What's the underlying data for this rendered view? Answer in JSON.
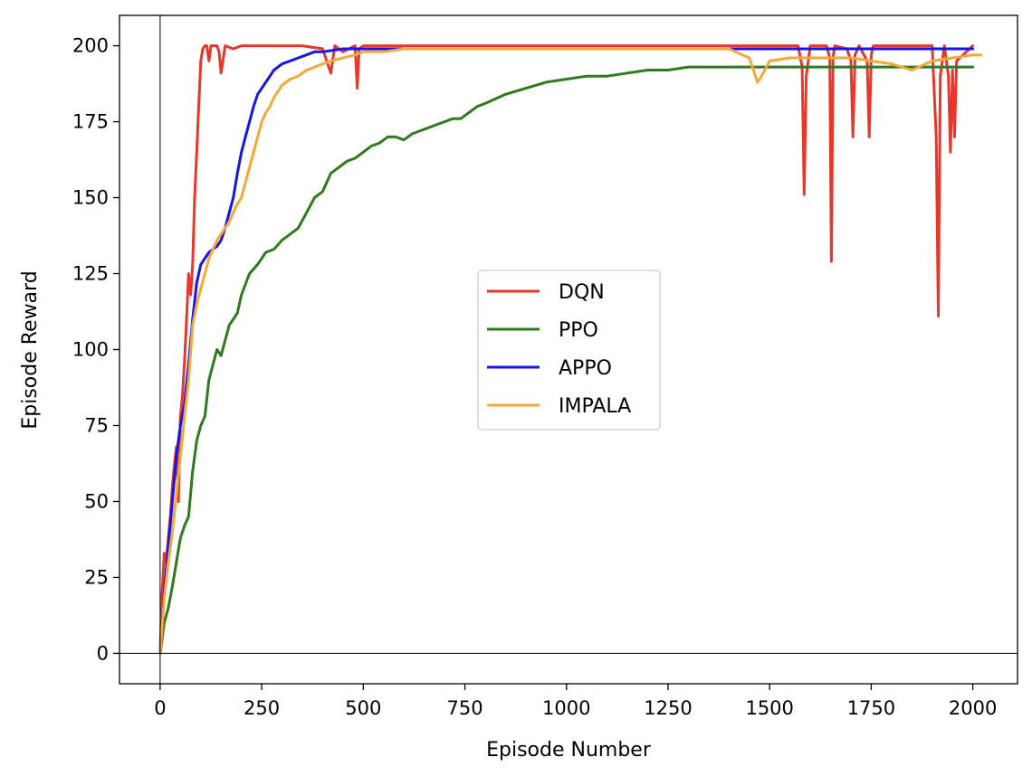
{
  "chart_data": {
    "type": "line",
    "title": "",
    "xlabel": "Episode Number",
    "ylabel": "Episode Reward",
    "xlim": [
      -100,
      2110
    ],
    "ylim": [
      -10,
      210
    ],
    "xticks": [
      "0",
      "250",
      "500",
      "750",
      "1000",
      "1250",
      "1500",
      "1750",
      "2000"
    ],
    "yticks": [
      "0",
      "25",
      "50",
      "75",
      "100",
      "125",
      "150",
      "175",
      "200"
    ],
    "grid": false,
    "legend_position": "center",
    "reference_lines": {
      "x": 0,
      "y": 0
    },
    "series": [
      {
        "name": "DQN",
        "color": "#e8372a",
        "x": [
          0,
          5,
          10,
          15,
          20,
          25,
          30,
          35,
          40,
          45,
          50,
          55,
          60,
          65,
          70,
          75,
          80,
          85,
          90,
          95,
          100,
          105,
          110,
          115,
          120,
          125,
          130,
          140,
          145,
          150,
          160,
          180,
          200,
          250,
          300,
          350,
          400,
          420,
          430,
          450,
          480,
          485,
          490,
          500,
          600,
          700,
          800,
          900,
          1000,
          1100,
          1200,
          1300,
          1400,
          1500,
          1570,
          1580,
          1585,
          1590,
          1600,
          1640,
          1648,
          1652,
          1656,
          1660,
          1690,
          1700,
          1705,
          1710,
          1720,
          1740,
          1745,
          1750,
          1755,
          1760,
          1800,
          1900,
          1910,
          1915,
          1920,
          1930,
          1940,
          1945,
          1950,
          1955,
          1960,
          2000
        ],
        "y": [
          0,
          20,
          33,
          30,
          38,
          45,
          55,
          62,
          68,
          50,
          78,
          85,
          96,
          110,
          125,
          118,
          128,
          150,
          165,
          180,
          195,
          199,
          200,
          200,
          195,
          200,
          200,
          200,
          198,
          191,
          200,
          199,
          200,
          200,
          200,
          200,
          199,
          191,
          200,
          198,
          200,
          186,
          199,
          200,
          200,
          200,
          200,
          200,
          200,
          200,
          200,
          200,
          200,
          200,
          200,
          193,
          151,
          190,
          200,
          200,
          196,
          129,
          196,
          200,
          199,
          195,
          170,
          197,
          200,
          195,
          170,
          197,
          200,
          200,
          200,
          200,
          170,
          111,
          190,
          200,
          190,
          165,
          192,
          170,
          195,
          200
        ]
      },
      {
        "name": "PPO",
        "color": "#2e7a1c",
        "x": [
          0,
          10,
          20,
          30,
          40,
          50,
          60,
          70,
          80,
          90,
          100,
          110,
          120,
          130,
          140,
          150,
          160,
          170,
          180,
          190,
          200,
          220,
          240,
          260,
          280,
          300,
          320,
          340,
          360,
          380,
          400,
          420,
          440,
          460,
          480,
          500,
          520,
          540,
          560,
          580,
          600,
          620,
          640,
          660,
          680,
          700,
          720,
          740,
          760,
          780,
          800,
          850,
          900,
          950,
          1000,
          1050,
          1100,
          1150,
          1200,
          1250,
          1300,
          1350,
          1400,
          1450,
          1500,
          1550,
          1600,
          1650,
          1700,
          1750,
          1800,
          1850,
          1900,
          1950,
          2000
        ],
        "y": [
          0,
          10,
          15,
          22,
          30,
          38,
          42,
          45,
          60,
          70,
          75,
          78,
          90,
          95,
          100,
          98,
          103,
          108,
          110,
          112,
          118,
          125,
          128,
          132,
          133,
          136,
          138,
          140,
          145,
          150,
          152,
          158,
          160,
          162,
          163,
          165,
          167,
          168,
          170,
          170,
          169,
          171,
          172,
          173,
          174,
          175,
          176,
          176,
          178,
          180,
          181,
          184,
          186,
          188,
          189,
          190,
          190,
          191,
          192,
          192,
          193,
          193,
          193,
          193,
          193,
          193,
          193,
          193,
          193,
          193,
          193,
          193,
          193,
          193,
          193
        ]
      },
      {
        "name": "APPO",
        "color": "#1414ee",
        "x": [
          0,
          10,
          20,
          30,
          40,
          50,
          60,
          70,
          80,
          90,
          100,
          110,
          120,
          130,
          140,
          150,
          160,
          170,
          180,
          190,
          200,
          210,
          220,
          230,
          240,
          250,
          260,
          270,
          280,
          290,
          300,
          320,
          340,
          360,
          380,
          400,
          450,
          500,
          600,
          700,
          800,
          900,
          1000,
          1100,
          1200,
          1300,
          1400,
          1500,
          1600,
          1700,
          1800,
          1900,
          2000
        ],
        "y": [
          0,
          20,
          35,
          50,
          65,
          75,
          82,
          95,
          110,
          122,
          128,
          130,
          132,
          133,
          134,
          136,
          140,
          145,
          150,
          158,
          165,
          170,
          175,
          180,
          184,
          186,
          188,
          190,
          192,
          193,
          194,
          195,
          196,
          197,
          198,
          198,
          199,
          199,
          199,
          199,
          199,
          199,
          199,
          199,
          199,
          199,
          199,
          199,
          199,
          199,
          199,
          199,
          199
        ]
      },
      {
        "name": "IMPALA",
        "color": "#f4a837",
        "x": [
          0,
          10,
          20,
          30,
          40,
          50,
          60,
          70,
          80,
          90,
          100,
          110,
          120,
          130,
          140,
          150,
          160,
          170,
          180,
          190,
          200,
          210,
          220,
          230,
          240,
          250,
          260,
          270,
          280,
          290,
          300,
          320,
          340,
          360,
          380,
          400,
          420,
          450,
          480,
          500,
          550,
          600,
          700,
          800,
          900,
          1000,
          1100,
          1200,
          1300,
          1400,
          1450,
          1470,
          1480,
          1500,
          1550,
          1600,
          1700,
          1750,
          1800,
          1850,
          1900,
          1950,
          2000,
          2020
        ],
        "y": [
          0,
          18,
          30,
          40,
          52,
          65,
          78,
          90,
          108,
          115,
          120,
          125,
          130,
          133,
          136,
          138,
          140,
          142,
          145,
          148,
          150,
          155,
          160,
          165,
          170,
          175,
          178,
          180,
          183,
          185,
          187,
          189,
          190,
          192,
          193,
          194,
          195,
          196,
          197,
          198,
          198,
          199,
          199,
          199,
          199,
          199,
          199,
          199,
          199,
          199,
          196,
          188,
          190,
          195,
          196,
          196,
          196,
          195,
          194,
          192,
          195,
          196,
          197,
          197
        ]
      }
    ]
  }
}
